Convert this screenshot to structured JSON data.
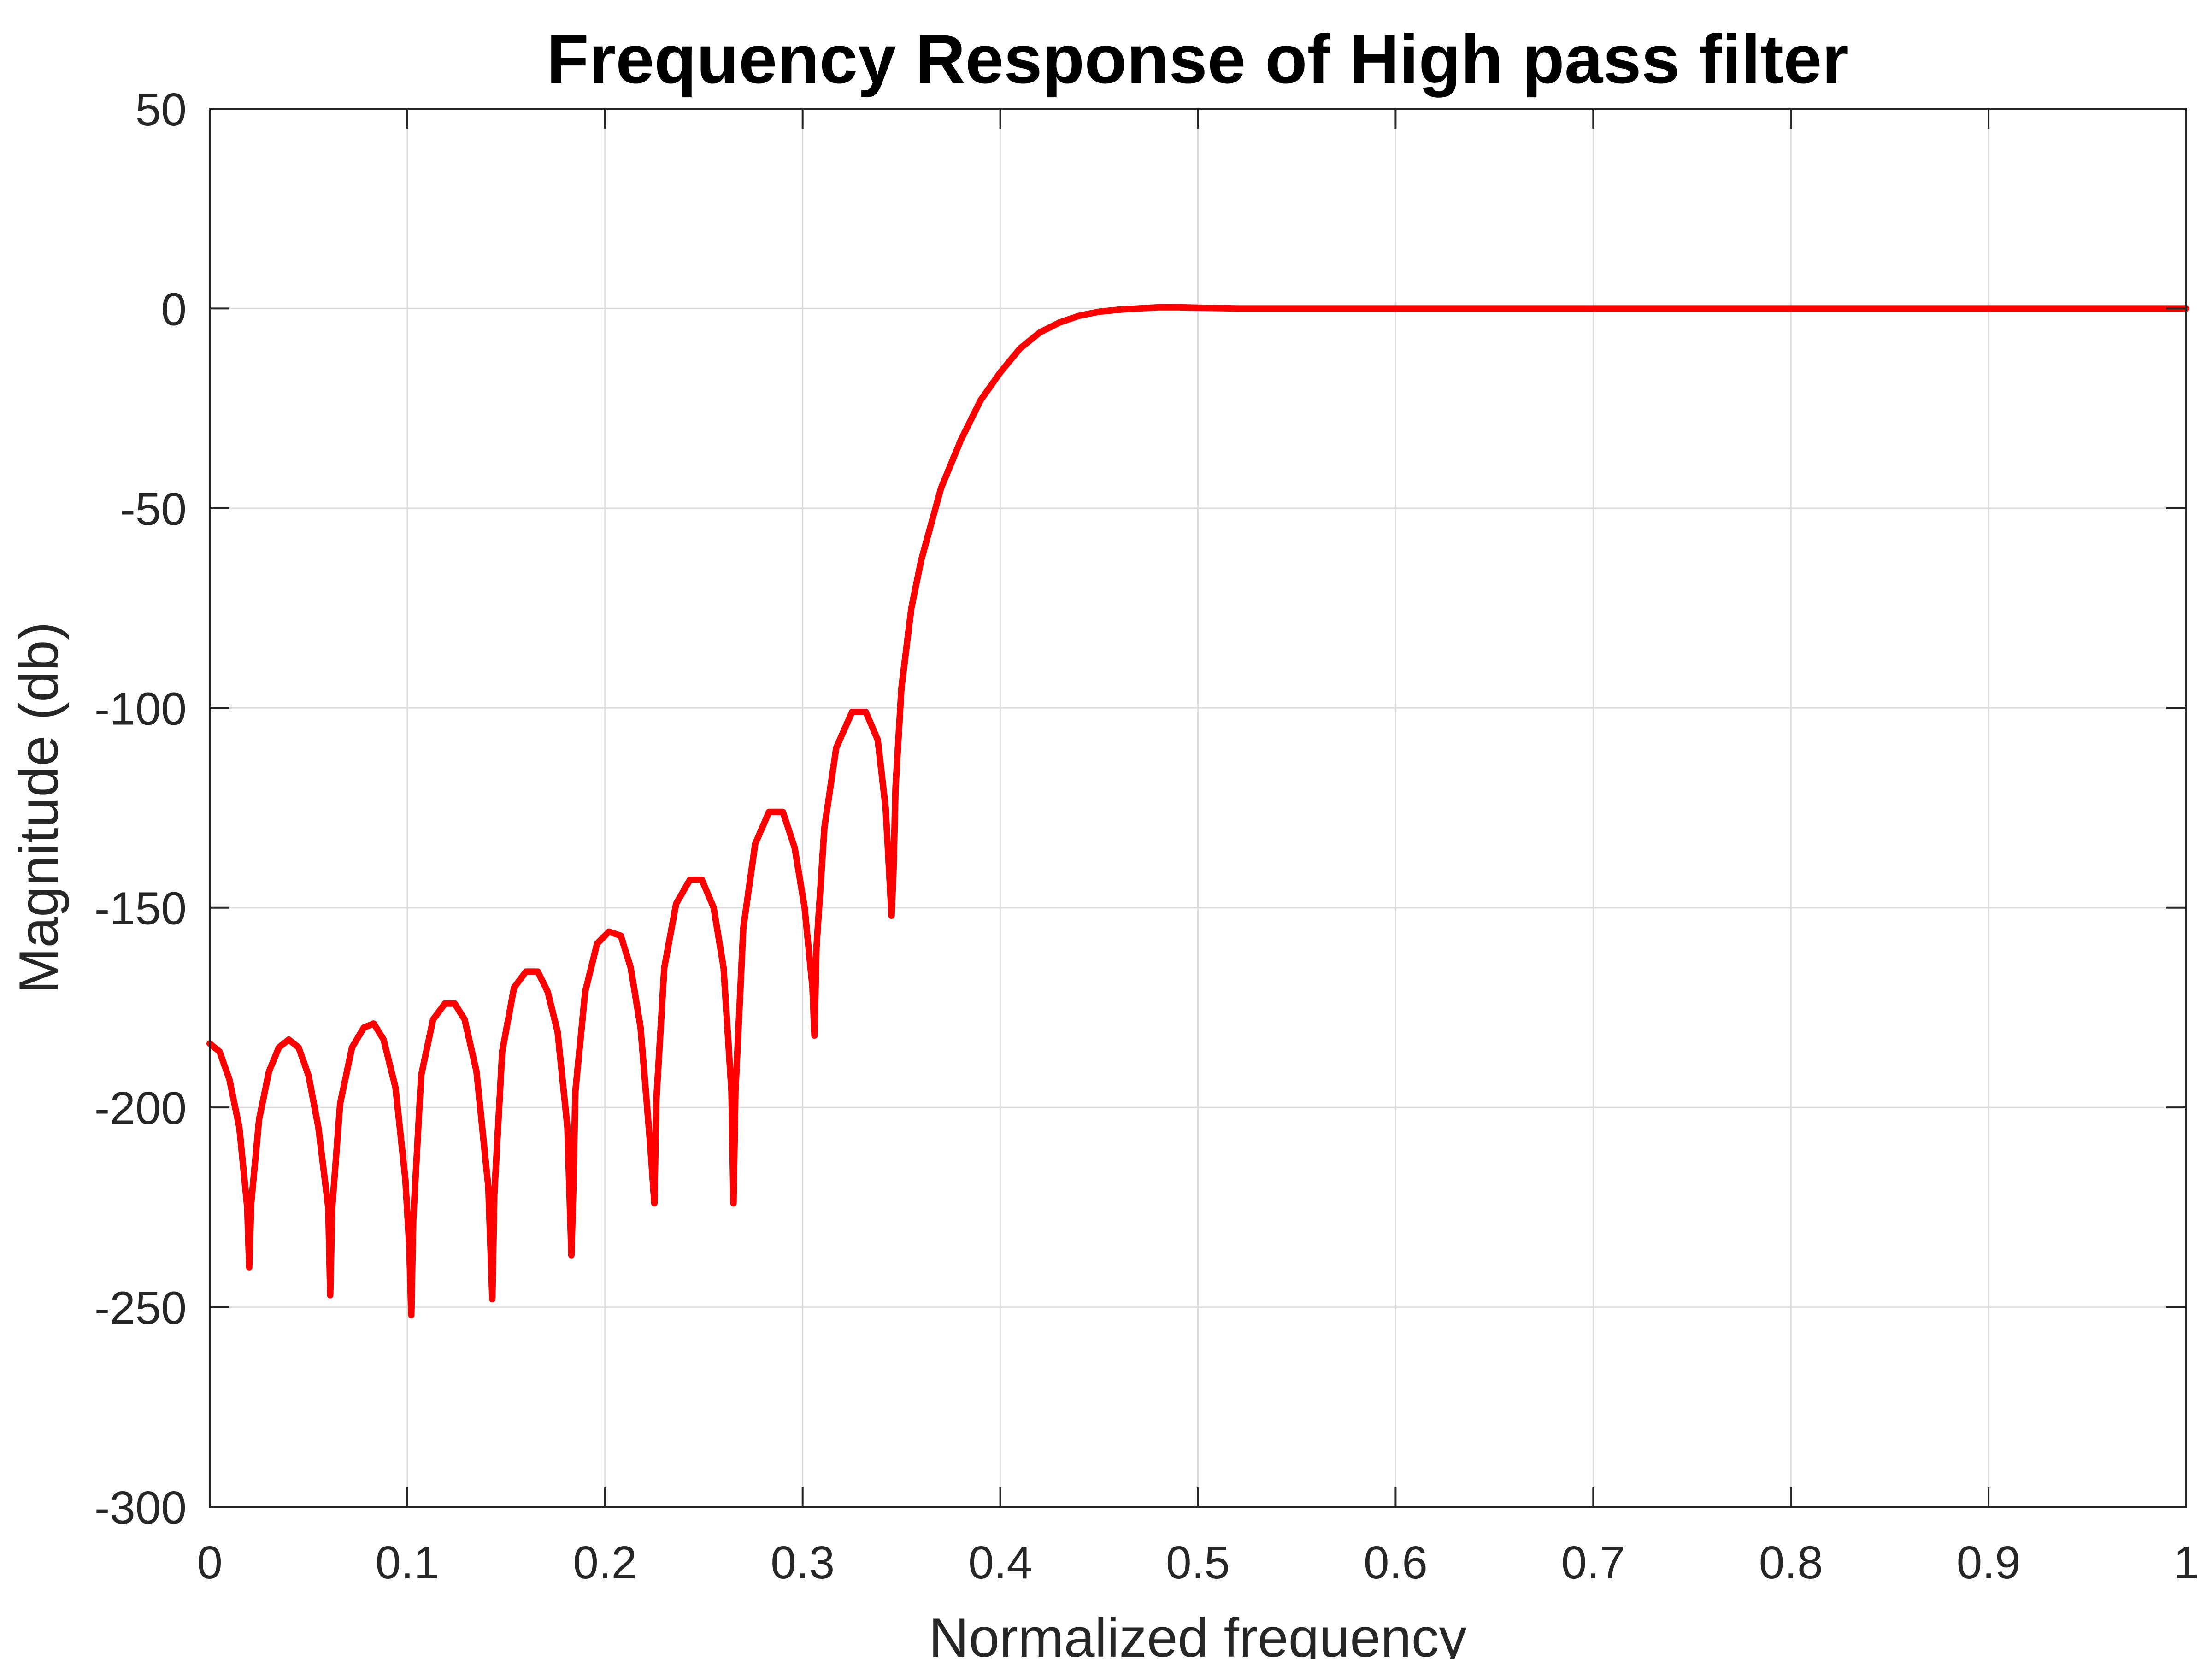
{
  "chart_data": {
    "type": "line",
    "title": "Frequency Response of High pass filter",
    "xlabel": "Normalized frequency",
    "ylabel": "Magnitude (db)",
    "xlim": [
      0,
      1
    ],
    "ylim": [
      -300,
      50
    ],
    "xticks": [
      "0",
      "0.1",
      "0.2",
      "0.3",
      "0.4",
      "0.5",
      "0.6",
      "0.7",
      "0.8",
      "0.9",
      "1"
    ],
    "yticks": [
      "50",
      "0",
      "-50",
      "-100",
      "-150",
      "-200",
      "-250",
      "-300"
    ],
    "grid": true,
    "colors": {
      "series": "#ff0000",
      "grid": "#dcdcdc",
      "axis": "#262626"
    },
    "series": [
      {
        "color": "#ff0000",
        "x": [
          0,
          0.005,
          0.01,
          0.015,
          0.019,
          0.02,
          0.021,
          0.025,
          0.03,
          0.035,
          0.04,
          0.045,
          0.05,
          0.055,
          0.06,
          0.061,
          0.062,
          0.066,
          0.072,
          0.078,
          0.083,
          0.088,
          0.094,
          0.099,
          0.101,
          0.102,
          0.103,
          0.107,
          0.113,
          0.119,
          0.124,
          0.129,
          0.135,
          0.141,
          0.143,
          0.144,
          0.148,
          0.154,
          0.16,
          0.166,
          0.171,
          0.176,
          0.181,
          0.183,
          0.184,
          0.185,
          0.19,
          0.196,
          0.202,
          0.208,
          0.213,
          0.218,
          0.223,
          0.225,
          0.226,
          0.23,
          0.236,
          0.243,
          0.249,
          0.255,
          0.26,
          0.264,
          0.265,
          0.266,
          0.27,
          0.276,
          0.283,
          0.29,
          0.296,
          0.301,
          0.305,
          0.306,
          0.307,
          0.311,
          0.317,
          0.325,
          0.332,
          0.338,
          0.342,
          0.345,
          0.346,
          0.347,
          0.35,
          0.355,
          0.36,
          0.37,
          0.38,
          0.39,
          0.4,
          0.41,
          0.42,
          0.43,
          0.44,
          0.45,
          0.46,
          0.47,
          0.48,
          0.49,
          0.5,
          0.52,
          0.55,
          0.6,
          0.7,
          0.8,
          0.9,
          1.0
        ],
        "y": [
          -184,
          -186,
          -193,
          -205,
          -225,
          -240,
          -224,
          -203,
          -191,
          -185,
          -183,
          -185,
          -192,
          -205,
          -225,
          -247,
          -225,
          -199,
          -185,
          -180,
          -179,
          -183,
          -195,
          -218,
          -235,
          -252,
          -228,
          -192,
          -178,
          -174,
          -174,
          -178,
          -191,
          -220,
          -248,
          -222,
          -186,
          -170,
          -166,
          -166,
          -171,
          -181,
          -205,
          -237,
          -220,
          -196,
          -171,
          -159,
          -156,
          -157,
          -165,
          -180,
          -210,
          -224,
          -198,
          -165,
          -149,
          -143,
          -143,
          -150,
          -165,
          -196,
          -224,
          -196,
          -155,
          -134,
          -126,
          -126,
          -135,
          -150,
          -170,
          -182,
          -160,
          -130,
          -110,
          -101,
          -101,
          -108,
          -125,
          -152,
          -140,
          -120,
          -95,
          -75,
          -63,
          -45,
          -33,
          -23,
          -16,
          -10,
          -6,
          -3.5,
          -1.8,
          -0.8,
          -0.3,
          0,
          0.3,
          0.3,
          0.2,
          0,
          0,
          0,
          0,
          0,
          0,
          0
        ]
      }
    ]
  }
}
